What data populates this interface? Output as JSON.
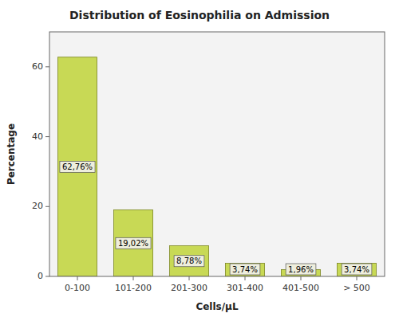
{
  "chart_data": {
    "type": "bar",
    "title": "Distribution of Eosinophilia on Admission",
    "xlabel": "Cells/μL",
    "ylabel": "Percentage",
    "categories": [
      "0-100",
      "101-200",
      "201-300",
      "301-400",
      "401-500",
      "> 500"
    ],
    "values": [
      62.76,
      19.02,
      8.78,
      3.74,
      1.96,
      3.74
    ],
    "value_labels": [
      "62,76%",
      "19,02%",
      "8,78%",
      "3,74%",
      "1,96%",
      "3,74%"
    ],
    "data_labels": true,
    "color": "#c8d955",
    "ylim": [
      0,
      70
    ],
    "yticks": [
      0,
      20,
      40,
      60
    ],
    "grid": false
  }
}
